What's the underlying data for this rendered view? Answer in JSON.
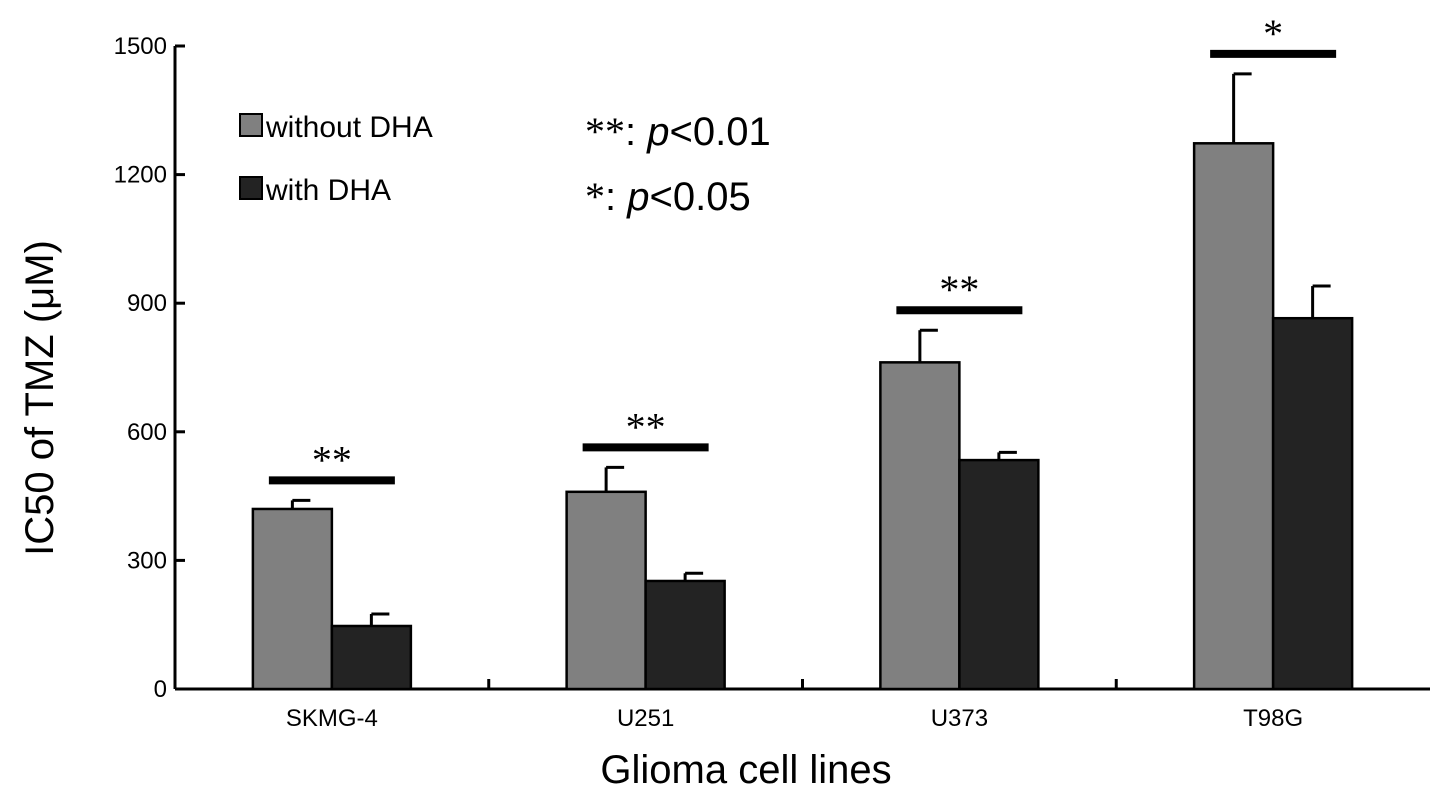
{
  "chart_data": {
    "type": "bar",
    "categories": [
      "SKMG-4",
      "U251",
      "U373",
      "T98G"
    ],
    "series": [
      {
        "name": "without DHA",
        "values": [
          420,
          460,
          762,
          1273
        ],
        "errors": [
          20,
          57,
          75,
          162
        ],
        "color": "#808080"
      },
      {
        "name": "with DHA",
        "values": [
          147,
          252,
          534,
          865
        ],
        "errors": [
          28,
          18,
          18,
          75
        ],
        "color": "#232323"
      }
    ],
    "xlabel": "Glioma cell lines",
    "ylabel": "IC50 of TMZ (μM)",
    "ylim": [
      0,
      1500
    ],
    "yticks": [
      0,
      300,
      600,
      900,
      1200,
      1500
    ],
    "grid": false,
    "legend_position": "top-left",
    "significance": [
      {
        "category": "SKMG-4",
        "stars": "**"
      },
      {
        "category": "U251",
        "stars": "**"
      },
      {
        "category": "U373",
        "stars": "**"
      },
      {
        "category": "T98G",
        "stars": "*"
      }
    ],
    "annotations": [
      {
        "symbol": "**",
        "sep": ": ",
        "p": "p",
        "rest": "<0.01"
      },
      {
        "symbol": "*",
        "sep": ": ",
        "p": "p",
        "rest": "<0.05"
      }
    ]
  }
}
